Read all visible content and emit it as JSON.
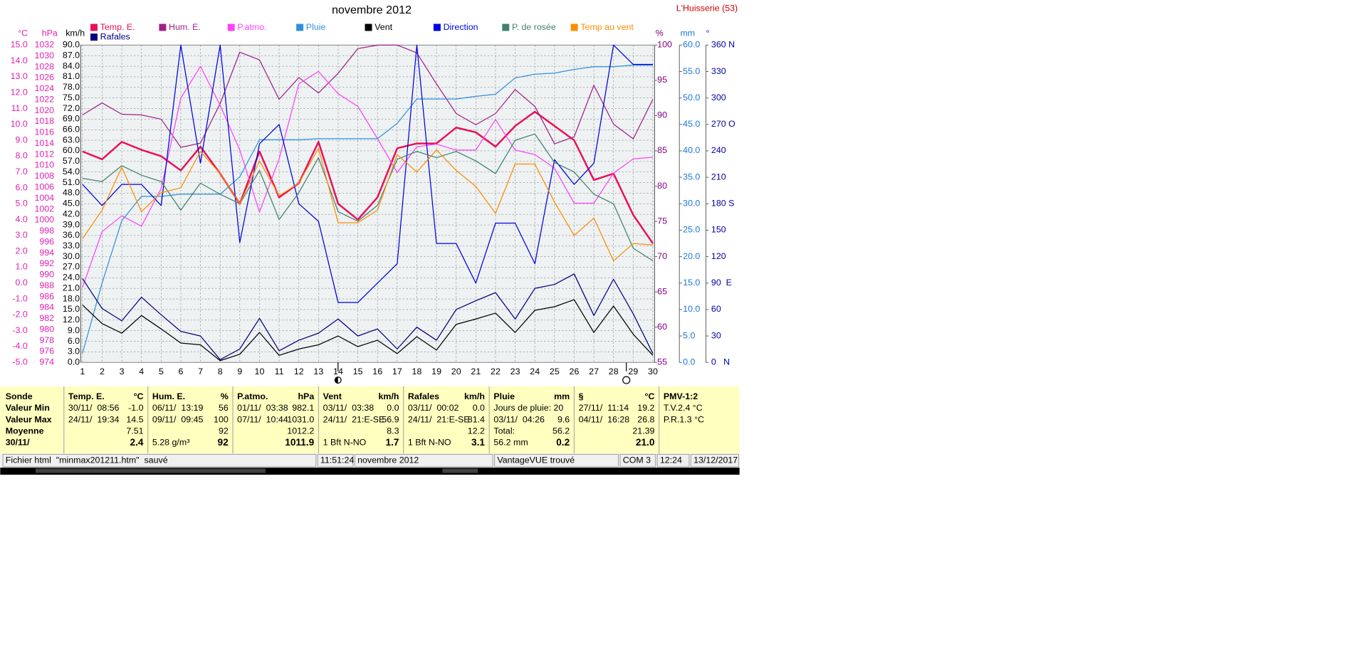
{
  "chart_data": {
    "type": "line",
    "title": "novembre 2012",
    "subtitle": "L'Huisserie (53)",
    "x": [
      1,
      2,
      3,
      4,
      5,
      6,
      7,
      8,
      9,
      10,
      11,
      12,
      13,
      14,
      15,
      16,
      17,
      18,
      19,
      20,
      21,
      22,
      23,
      24,
      25,
      26,
      27,
      28,
      29,
      30
    ],
    "xlim": [
      1,
      30
    ],
    "grid": true,
    "y_axes": [
      {
        "label": "°C",
        "color": "#e020b0",
        "lim": [
          -5,
          15
        ],
        "ticks": [
          {
            "value": -5,
            "label": "-5.0"
          },
          {
            "value": -4,
            "label": "-4.0"
          },
          {
            "value": -3,
            "label": "-3.0"
          },
          {
            "value": -2,
            "label": "-2.0"
          },
          {
            "value": -1,
            "label": "-1.0"
          },
          {
            "value": 0,
            "label": "0.0"
          },
          {
            "value": 1,
            "label": "1.0"
          },
          {
            "value": 2,
            "label": "2.0"
          },
          {
            "value": 3,
            "label": "3.0"
          },
          {
            "value": 4,
            "label": "4.0"
          },
          {
            "value": 5,
            "label": "5.0"
          },
          {
            "value": 6,
            "label": "6.0"
          },
          {
            "value": 7,
            "label": "7.0"
          },
          {
            "value": 8,
            "label": "8.0"
          },
          {
            "value": 9,
            "label": "9.0"
          },
          {
            "value": 10,
            "label": "10.0"
          },
          {
            "value": 11,
            "label": "11.0"
          },
          {
            "value": 12,
            "label": "12.0"
          },
          {
            "value": 13,
            "label": "13.0"
          },
          {
            "value": 14,
            "label": "14.0"
          },
          {
            "value": 15,
            "label": "15.0"
          }
        ]
      },
      {
        "label": "hPa",
        "color": "#e020b0",
        "lim": [
          974,
          1032
        ],
        "ticks": [
          974,
          976,
          978,
          980,
          982,
          984,
          986,
          988,
          990,
          992,
          994,
          996,
          998,
          1000,
          1002,
          1004,
          1006,
          1008,
          1010,
          1012,
          1014,
          1016,
          1018,
          1020,
          1022,
          1024,
          1026,
          1028,
          1030,
          1032
        ]
      },
      {
        "label": "km/h",
        "color": "#000000",
        "lim": [
          0,
          90
        ],
        "grid": true,
        "ticks": [
          {
            "value": 0,
            "label": "0.0"
          },
          {
            "value": 3,
            "label": "3.0"
          },
          {
            "value": 6,
            "label": "6.0"
          },
          {
            "value": 9,
            "label": "9.0"
          },
          {
            "value": 12,
            "label": "12.0"
          },
          {
            "value": 15,
            "label": "15.0"
          },
          {
            "value": 18,
            "label": "18.0"
          },
          {
            "value": 21,
            "label": "21.0"
          },
          {
            "value": 24,
            "label": "24.0"
          },
          {
            "value": 27,
            "label": "27.0"
          },
          {
            "value": 30,
            "label": "30.0"
          },
          {
            "value": 33,
            "label": "33.0"
          },
          {
            "value": 36,
            "label": "36.0"
          },
          {
            "value": 39,
            "label": "39.0"
          },
          {
            "value": 42,
            "label": "42.0"
          },
          {
            "value": 45,
            "label": "45.0"
          },
          {
            "value": 48,
            "label": "48.0"
          },
          {
            "value": 51,
            "label": "51.0"
          },
          {
            "value": 54,
            "label": "54.0"
          },
          {
            "value": 57,
            "label": "57.0"
          },
          {
            "value": 60,
            "label": "60.0"
          },
          {
            "value": 63,
            "label": "63.0"
          },
          {
            "value": 66,
            "label": "66.0"
          },
          {
            "value": 69,
            "label": "69.0"
          },
          {
            "value": 72,
            "label": "72.0"
          },
          {
            "value": 75,
            "label": "75.0"
          },
          {
            "value": 78,
            "label": "78.0"
          },
          {
            "value": 81,
            "label": "81.0"
          },
          {
            "value": 84,
            "label": "84.0"
          },
          {
            "value": 87,
            "label": "87.0"
          },
          {
            "value": 90,
            "label": "90.0"
          }
        ]
      },
      {
        "label": "%",
        "color": "#800080",
        "lim": [
          55,
          100
        ],
        "ticks": [
          55,
          60,
          65,
          70,
          75,
          80,
          85,
          90,
          95,
          100
        ]
      },
      {
        "label": "mm",
        "color": "#1878d8",
        "lim": [
          0,
          60
        ],
        "ticks": [
          {
            "value": 0,
            "label": "0.0"
          },
          {
            "value": 5,
            "label": "5.0"
          },
          {
            "value": 10,
            "label": "10.0"
          },
          {
            "value": 15,
            "label": "15.0"
          },
          {
            "value": 20,
            "label": "20.0"
          },
          {
            "value": 25,
            "label": "25.0"
          },
          {
            "value": 30,
            "label": "30.0"
          },
          {
            "value": 35,
            "label": "35.0"
          },
          {
            "value": 40,
            "label": "40.0"
          },
          {
            "value": 45,
            "label": "45.0"
          },
          {
            "value": 50,
            "label": "50.0"
          },
          {
            "value": 55,
            "label": "55.0"
          },
          {
            "value": 60,
            "label": "60.0"
          }
        ]
      },
      {
        "label": "°",
        "color": "#0000a0",
        "lim": [
          0,
          360
        ],
        "ticks": [
          {
            "value": 0,
            "label": "0   N"
          },
          30,
          60,
          {
            "value": 90,
            "label": "90  E"
          },
          120,
          150,
          {
            "value": 180,
            "label": "180 S"
          },
          210,
          240,
          {
            "value": 270,
            "label": "270 O"
          },
          300,
          330,
          {
            "value": 360,
            "label": "360 N"
          }
        ]
      }
    ],
    "series": [
      {
        "name": "Temp. E.",
        "color": "#e8105a",
        "line_width": 2,
        "axis": 0,
        "values": [
          8.3,
          7.8,
          8.9,
          8.4,
          8.0,
          7.1,
          8.6,
          6.9,
          5.0,
          8.3,
          5.4,
          6.3,
          8.9,
          5.0,
          4.0,
          5.4,
          8.5,
          8.8,
          8.8,
          9.8,
          9.5,
          8.6,
          9.9,
          10.8,
          9.9,
          9.0,
          6.5,
          6.9,
          4.3,
          2.5
        ]
      },
      {
        "name": "Hum. E.",
        "color": "#a0208a",
        "line_width": 1,
        "axis": 3,
        "values": [
          90.1,
          91.8,
          90.2,
          90.1,
          89.5,
          85.5,
          86.1,
          91.7,
          99.0,
          97.9,
          92.3,
          95.4,
          93.2,
          96.0,
          99.5,
          100,
          100,
          98.9,
          94.5,
          90.3,
          88.7,
          90.3,
          93.7,
          91.3,
          86.0,
          87.0,
          94.3,
          88.8,
          86.7,
          92.3
        ]
      },
      {
        "name": "P.atmo.",
        "color": "#ff40ff",
        "line_width": 1,
        "axis": 1,
        "values": [
          987.7,
          997.9,
          1000.8,
          998.9,
          1005.8,
          1022.3,
          1028.1,
          1021.0,
          1012.8,
          1001.5,
          1011.2,
          1024.9,
          1027.2,
          1023.1,
          1020.8,
          1014.9,
          1008.7,
          1013.4,
          1013.9,
          1012.8,
          1012.8,
          1018.4,
          1012.8,
          1012.0,
          1009.5,
          1003.1,
          1003.1,
          1008.6,
          1011.2,
          1011.5
        ]
      },
      {
        "name": "Pluie",
        "color": "#3090e0",
        "line_width": 1,
        "axis": 4,
        "values": [
          1.7,
          15.0,
          26.8,
          31.4,
          31.4,
          31.8,
          31.8,
          31.8,
          35.1,
          42.1,
          42.1,
          42.1,
          42.3,
          42.3,
          42.3,
          42.3,
          45.2,
          49.8,
          49.8,
          49.8,
          50.3,
          50.7,
          53.8,
          54.5,
          54.7,
          55.4,
          55.9,
          55.9,
          56.2,
          56.2
        ]
      },
      {
        "name": "Vent",
        "color": "#000000",
        "line_width": 1,
        "axis": 2,
        "values": [
          16.3,
          11.0,
          8.3,
          13.3,
          9.5,
          5.5,
          5.0,
          0.5,
          2.3,
          8.5,
          2.0,
          3.8,
          5.0,
          7.5,
          4.5,
          6.3,
          2.5,
          7.3,
          3.5,
          10.8,
          12.3,
          14.0,
          8.5,
          14.8,
          15.8,
          17.8,
          8.5,
          16.0,
          8.0,
          2.0
        ]
      },
      {
        "name": "Direction",
        "color": "#0000e0",
        "line_width": 1,
        "axis": 5,
        "values": [
          202,
          178,
          202,
          202,
          178,
          360,
          226,
          360,
          136,
          248,
          270,
          180,
          160,
          68,
          68,
          90,
          112,
          360,
          135,
          135,
          90,
          158,
          158,
          112,
          230,
          202,
          226,
          360,
          338,
          338
        ]
      },
      {
        "name": "P. de rosée",
        "color": "#408070",
        "line_width": 1,
        "axis": 0,
        "values": [
          6.6,
          6.4,
          7.4,
          6.8,
          6.4,
          4.6,
          6.3,
          5.6,
          5.0,
          7.1,
          4.0,
          5.7,
          7.9,
          4.5,
          3.9,
          4.9,
          7.8,
          8.3,
          7.9,
          8.3,
          7.7,
          6.9,
          9.0,
          9.4,
          7.6,
          7.0,
          5.6,
          5.0,
          2.2,
          1.4
        ]
      },
      {
        "name": "Temp au vent",
        "color": "#ff8c00",
        "line_width": 1,
        "axis": 0,
        "values": [
          2.8,
          4.6,
          7.3,
          4.5,
          5.7,
          6.0,
          8.3,
          6.9,
          5.0,
          7.7,
          5.5,
          6.3,
          8.5,
          3.8,
          3.8,
          4.6,
          8.1,
          7.0,
          8.4,
          7.1,
          6.1,
          4.4,
          7.5,
          7.5,
          5.1,
          3.0,
          4.1,
          1.4,
          2.5,
          2.4
        ]
      },
      {
        "name": "Rafales",
        "color": "#000080",
        "line_width": 1,
        "axis": 2,
        "values": [
          23.8,
          15.3,
          11.8,
          18.5,
          13.5,
          8.8,
          7.5,
          0.8,
          3.8,
          12.5,
          3.3,
          6.3,
          8.3,
          12.3,
          7.5,
          9.5,
          3.8,
          10.0,
          6.3,
          15.0,
          17.5,
          19.8,
          12.3,
          21.0,
          22.1,
          25.1,
          13.3,
          23.6,
          13.8,
          2.5
        ]
      }
    ]
  },
  "table": {
    "row_labels": [
      "Sonde",
      "Valeur Min",
      "Valeur Max",
      "Moyenne",
      "30/11/"
    ],
    "columns": [
      {
        "title": "Temp. E.",
        "unit": "°C",
        "rows": [
          {
            "text": "30/11/  08:56",
            "value": "-1.0"
          },
          {
            "text": "24/11/  19:34",
            "value": "14.5"
          },
          {
            "value": "7.51"
          },
          {
            "value": "2.4"
          }
        ]
      },
      {
        "title": "Hum. E.",
        "unit": "%",
        "rows": [
          {
            "text": "06/11/  13:19",
            "value": "56"
          },
          {
            "text": "09/11/  09:45",
            "value": "100"
          },
          {
            "value": "92"
          },
          {
            "text": "5.28 g/m³",
            "value": "92"
          }
        ]
      },
      {
        "title": "P.atmo.",
        "unit": "hPa",
        "rows": [
          {
            "text": "01/11/  03:38",
            "value": "982.1"
          },
          {
            "text": "07/11/  10:44",
            "value": "1031.0"
          },
          {
            "value": "1012.2"
          },
          {
            "value": "1011.9"
          }
        ]
      },
      {
        "title": "Vent",
        "unit": "km/h",
        "rows": [
          {
            "text": "03/11/  03:38",
            "value": "0.0"
          },
          {
            "text": "24/11/  21:E-SE",
            "value": "56.9"
          },
          {
            "value": "8.3"
          },
          {
            "text": "1 Bft N-NO",
            "value": "1.7"
          }
        ]
      },
      {
        "title": "Rafales",
        "unit": "km/h",
        "rows": [
          {
            "text": "03/11/  00:02",
            "value": "0.0"
          },
          {
            "text": "24/11/  21:E-SE",
            "value": "81.4"
          },
          {
            "value": "12.2"
          },
          {
            "text": "1 Bft N-NO",
            "value": "3.1"
          }
        ]
      },
      {
        "title": "Pluie",
        "unit": "mm",
        "rows": [
          {
            "text": "Jours de pluie: 20"
          },
          {
            "text": "03/11/  04:26",
            "value": "9.6"
          },
          {
            "text": "Total:",
            "value": "56.2"
          },
          {
            "text": "56.2 mm",
            "value": "0.2"
          }
        ]
      },
      {
        "title": "§",
        "unit": "°C",
        "rows": [
          {
            "text": "27/11/  11:14",
            "value": "19.2"
          },
          {
            "text": "04/11/  16:28",
            "value": "26.8"
          },
          {
            "value": "21.39"
          },
          {
            "value": "21.0"
          }
        ]
      },
      {
        "title": "PMV-1:2",
        "rows": [
          {
            "text": "T.V.2.4 °C"
          },
          {
            "text": "P.R.1.3 °C"
          }
        ]
      }
    ]
  },
  "status_bar": [
    "Fichier html  \"minmax201211.htm\"  sauvé",
    "11:51:24",
    "novembre 2012",
    "VantageVUE trouvé",
    "COM 3",
    "12:24",
    "13/12/2017"
  ]
}
